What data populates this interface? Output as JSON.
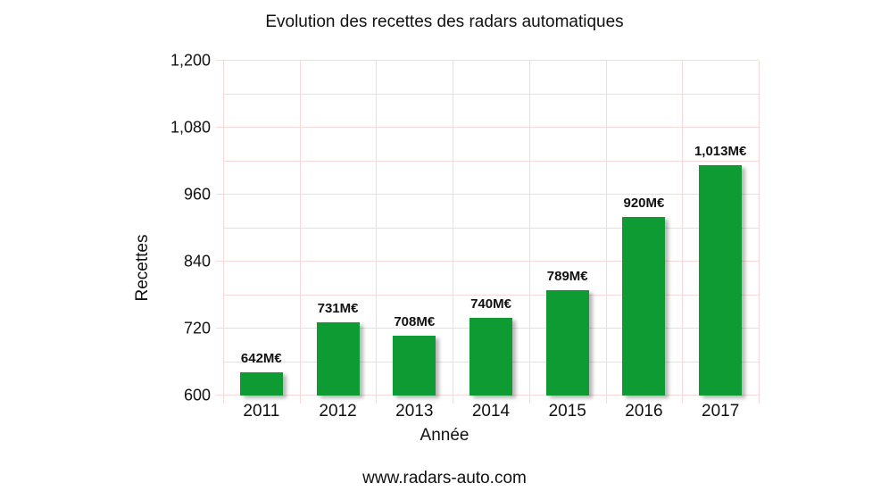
{
  "title": "Evolution des recettes des radars automatiques",
  "footer": {
    "website": "www.radars-auto.com"
  },
  "chart_data": {
    "type": "bar",
    "title": "Evolution des recettes des radars automatiques",
    "xlabel": "Année",
    "ylabel": "Recettes",
    "categories": [
      "2011",
      "2012",
      "2013",
      "2014",
      "2015",
      "2016",
      "2017"
    ],
    "values": [
      642,
      731,
      708,
      740,
      789,
      920,
      1013
    ],
    "value_labels": [
      "642M€",
      "731M€",
      "708M€",
      "740M€",
      "789M€",
      "920M€",
      "1,013M€"
    ],
    "ylim": [
      600,
      1200
    ],
    "ytick_values": [
      600,
      720,
      840,
      960,
      1080,
      1200
    ],
    "ytick_labels": [
      "600",
      "720",
      "840",
      "960",
      "1,080",
      "1,200"
    ],
    "ygrid_minor_step": 60,
    "grid": true,
    "legend": false,
    "colors": {
      "bar": "#0f9b33",
      "grid": "#f8d8d8",
      "text": "#111111",
      "background": "#ffffff"
    }
  }
}
